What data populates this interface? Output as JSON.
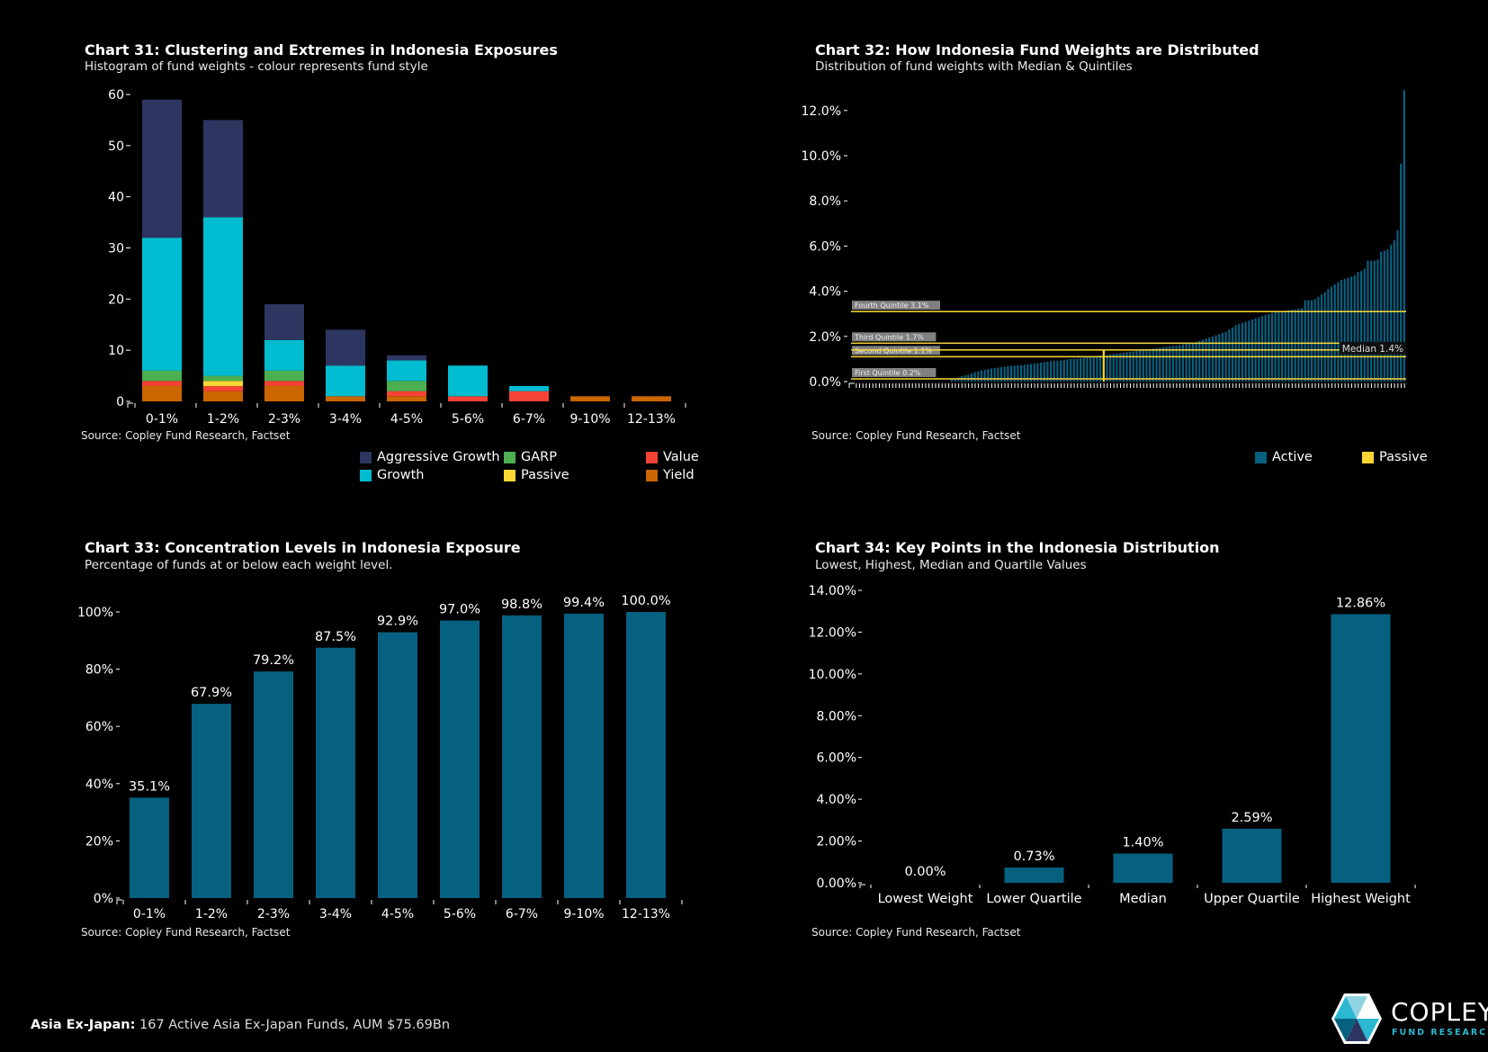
{
  "colors": {
    "aggressive_growth": "#2d3561",
    "growth": "#00bcd0",
    "garp": "#4caf50",
    "passive": "#fdd835",
    "value": "#f44336",
    "yield": "#cc6600",
    "active": "#066080",
    "quintile_line": "#fdd835",
    "label_box": "#808080"
  },
  "footer": {
    "region": "Asia Ex-Japan:",
    "text": "167 Active Asia Ex-Japan Funds, AUM $75.69Bn"
  },
  "logo": {
    "name": "COPLEY",
    "tagline": "FUND RESEARCH"
  },
  "chart_data": [
    {
      "id": "chart31",
      "type": "bar",
      "stacked": true,
      "title": "Chart 31:  Clustering and Extremes in Indonesia Exposures",
      "subtitle": "Histogram of fund weights - colour represents fund style",
      "source": "Source:  Copley Fund Research, Factset",
      "xlabel": "",
      "ylabel": "",
      "ylim": [
        0,
        60
      ],
      "yticks": [
        0,
        10,
        20,
        30,
        40,
        50,
        60
      ],
      "categories": [
        "0-1%",
        "1-2%",
        "2-3%",
        "3-4%",
        "4-5%",
        "5-6%",
        "6-7%",
        "9-10%",
        "12-13%"
      ],
      "series": [
        {
          "name": "Yield",
          "key": "yield",
          "values": [
            3,
            2,
            3,
            1,
            1,
            0,
            0,
            1,
            1
          ]
        },
        {
          "name": "Value",
          "key": "value",
          "values": [
            1,
            1,
            1,
            0,
            1,
            1,
            2,
            0,
            0
          ]
        },
        {
          "name": "Passive",
          "key": "passive",
          "values": [
            0,
            1,
            0,
            0,
            0,
            0,
            0,
            0,
            0
          ]
        },
        {
          "name": "GARP",
          "key": "garp",
          "values": [
            2,
            1,
            2,
            0,
            2,
            0,
            0,
            0,
            0
          ]
        },
        {
          "name": "Growth",
          "key": "growth",
          "values": [
            26,
            31,
            6,
            6,
            4,
            6,
            1,
            0,
            0
          ]
        },
        {
          "name": "Aggressive Growth",
          "key": "aggressive_growth",
          "values": [
            27,
            19,
            7,
            7,
            1,
            0,
            0,
            0,
            0
          ]
        }
      ],
      "legend": [
        {
          "name": "Aggressive Growth",
          "key": "aggressive_growth"
        },
        {
          "name": "GARP",
          "key": "garp"
        },
        {
          "name": "Value",
          "key": "value"
        },
        {
          "name": "Growth",
          "key": "growth"
        },
        {
          "name": "Passive",
          "key": "passive"
        },
        {
          "name": "Yield",
          "key": "yield"
        }
      ],
      "legend_position": "bottom-right"
    },
    {
      "id": "chart32",
      "type": "bar",
      "title": "Chart 32:  How Indonesia Fund Weights are Distributed",
      "subtitle": "Distribution of fund weights with Median & Quintiles",
      "source": "Source:  Copley Fund Research, Factset",
      "ylim": [
        0,
        13
      ],
      "yticks": [
        0,
        2,
        4,
        6,
        8,
        10,
        12
      ],
      "ytick_labels": [
        "0.0%",
        "2.0%",
        "4.0%",
        "6.0%",
        "8.0%",
        "10.0%",
        "12.0%"
      ],
      "passive_index": 75,
      "values": [
        0,
        0,
        0,
        0,
        0,
        0,
        0,
        0,
        0,
        0,
        0,
        0,
        0,
        0,
        0,
        0,
        0,
        0,
        0,
        0,
        0,
        0,
        0,
        0,
        0,
        0,
        0,
        0,
        0,
        0.1,
        0.13,
        0.18,
        0.24,
        0.28,
        0.3,
        0.36,
        0.42,
        0.44,
        0.5,
        0.52,
        0.56,
        0.58,
        0.6,
        0.62,
        0.64,
        0.66,
        0.68,
        0.7,
        0.71,
        0.72,
        0.73,
        0.74,
        0.76,
        0.78,
        0.8,
        0.82,
        0.84,
        0.86,
        0.88,
        0.9,
        0.92,
        0.93,
        0.94,
        0.96,
        0.98,
        1.0,
        1.0,
        1.02,
        1.04,
        1.06,
        1.08,
        1.1,
        1.12,
        1.14,
        1.16,
        1.4,
        1.18,
        1.2,
        1.22,
        1.24,
        1.26,
        1.28,
        1.3,
        1.32,
        1.34,
        1.36,
        1.38,
        1.4,
        1.42,
        1.44,
        1.46,
        1.48,
        1.5,
        1.52,
        1.54,
        1.56,
        1.58,
        1.6,
        1.62,
        1.64,
        1.66,
        1.68,
        1.7,
        1.75,
        1.8,
        1.85,
        1.9,
        1.95,
        2.0,
        2.05,
        2.1,
        2.15,
        2.2,
        2.3,
        2.4,
        2.5,
        2.55,
        2.6,
        2.65,
        2.7,
        2.75,
        2.8,
        2.85,
        2.9,
        2.95,
        3.0,
        3.05,
        3.08,
        3.1,
        3.12,
        3.14,
        3.16,
        3.18,
        3.2,
        3.22,
        3.25,
        3.6,
        3.6,
        3.6,
        3.65,
        3.75,
        3.85,
        3.95,
        4.1,
        4.2,
        4.3,
        4.4,
        4.5,
        4.55,
        4.6,
        4.65,
        4.7,
        4.85,
        4.9,
        5.0,
        5.35,
        5.35,
        5.35,
        5.4,
        5.75,
        5.8,
        5.85,
        6.05,
        6.25,
        6.7,
        9.65,
        12.9
      ],
      "reference_lines": [
        {
          "label": "First Quintile 0.2%",
          "value": 0.2,
          "side": "left"
        },
        {
          "label": "Second Quintile 1.1%",
          "value": 1.1,
          "side": "left"
        },
        {
          "label": "Third Quintile 1.7%",
          "value": 1.7,
          "side": "left"
        },
        {
          "label": "Fourth Quintile 3.1%",
          "value": 3.1,
          "side": "left"
        },
        {
          "label": "Median 1.4%",
          "value": 1.4,
          "side": "right"
        }
      ],
      "legend": [
        {
          "name": "Active",
          "key": "active"
        },
        {
          "name": "Passive",
          "key": "passive"
        }
      ],
      "legend_position": "bottom-right"
    },
    {
      "id": "chart33",
      "type": "bar",
      "title": "Chart 33:  Concentration Levels in Indonesia Exposure",
      "subtitle": "Percentage of funds at or below each weight level.",
      "source": "Source:  Copley Fund Research, Factset",
      "ylim": [
        0,
        100
      ],
      "yticks": [
        0,
        20,
        40,
        60,
        80,
        100
      ],
      "ytick_labels": [
        "0%",
        "20%",
        "40%",
        "60%",
        "80%",
        "100%"
      ],
      "categories": [
        "0-1%",
        "1-2%",
        "2-3%",
        "3-4%",
        "4-5%",
        "5-6%",
        "6-7%",
        "9-10%",
        "12-13%"
      ],
      "values": [
        35.1,
        67.9,
        79.2,
        87.5,
        92.9,
        97.0,
        98.8,
        99.4,
        100.0
      ],
      "data_labels": [
        "35.1%",
        "67.9%",
        "79.2%",
        "87.5%",
        "92.9%",
        "97.0%",
        "98.8%",
        "99.4%",
        "100.0%"
      ]
    },
    {
      "id": "chart34",
      "type": "bar",
      "title": "Chart 34:  Key Points in the Indonesia Distribution",
      "subtitle": "Lowest, Highest, Median and Quartile Values",
      "source": "Source:  Copley Fund Research, Factset",
      "ylim": [
        0,
        14
      ],
      "yticks": [
        0,
        2,
        4,
        6,
        8,
        10,
        12,
        14
      ],
      "ytick_labels": [
        "0.00%",
        "2.00%",
        "4.00%",
        "6.00%",
        "8.00%",
        "10.00%",
        "12.00%",
        "14.00%"
      ],
      "categories": [
        "Lowest Weight",
        "Lower Quartile",
        "Median",
        "Upper Quartile",
        "Highest Weight"
      ],
      "values": [
        0.0,
        0.73,
        1.4,
        2.59,
        12.86
      ],
      "data_labels": [
        "0.00%",
        "0.73%",
        "1.40%",
        "2.59%",
        "12.86%"
      ]
    }
  ]
}
